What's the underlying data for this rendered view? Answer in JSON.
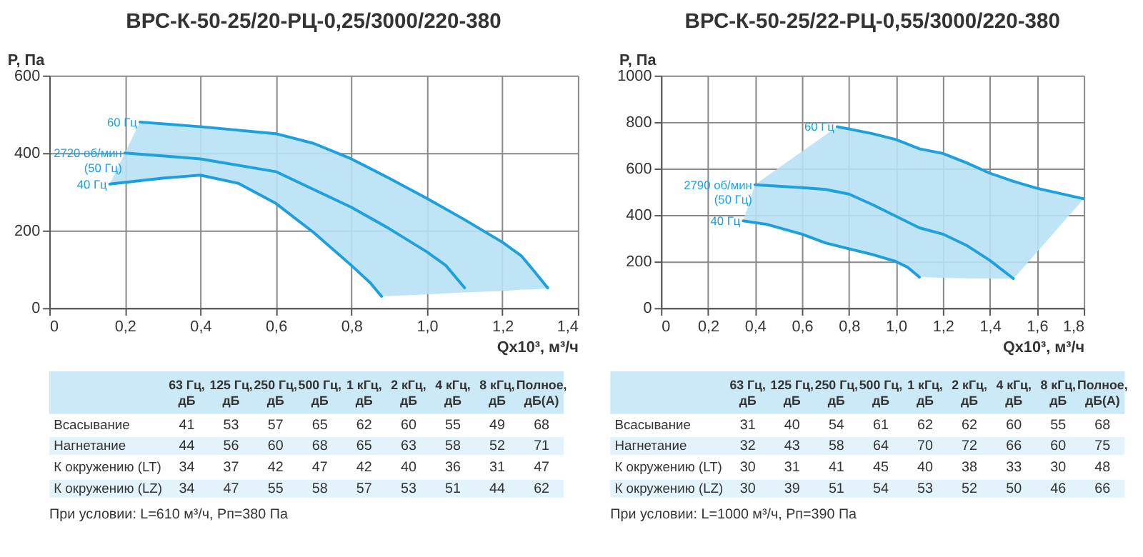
{
  "chart_data": [
    {
      "type": "line",
      "title": "ВРС-К-50-25/20-РЦ-0,25/3000/220-380",
      "xlabel": "Qx10³, м³/ч",
      "ylabel": "P, Па",
      "grid": true,
      "xlim": [
        0,
        1.4
      ],
      "xticks": [
        0,
        {
          "value": 0.2,
          "label": "0,2"
        },
        {
          "value": 0.4,
          "label": "0,4"
        },
        {
          "value": 0.6,
          "label": "0,6"
        },
        {
          "value": 0.8,
          "label": "0,8"
        },
        {
          "value": 1.0,
          "label": "1,0"
        },
        {
          "value": 1.2,
          "label": "1,2"
        },
        {
          "value": 1.4,
          "label": "1,4"
        }
      ],
      "ylim": [
        0,
        600
      ],
      "yticks": [
        0,
        200,
        400,
        600
      ],
      "series": [
        {
          "type": "area",
          "color": "#b7e1f5",
          "x": [
            0.16,
            0.24,
            0.3,
            0.4,
            0.5,
            0.6,
            0.7,
            0.8,
            0.85,
            0.88,
            0.9,
            1.0,
            1.1,
            1.2,
            1.25,
            1.28,
            1.32
          ],
          "values": [
            null,
            null,
            null,
            null,
            null,
            null,
            null,
            null,
            null,
            null,
            null,
            null,
            null,
            null,
            null,
            null,
            null
          ],
          "upper": [
            320,
            480,
            475,
            468,
            460,
            450,
            425,
            385,
            360,
            345,
            335,
            283,
            228,
            170,
            135,
            100,
            52
          ],
          "lower": [
            320,
            328,
            335,
            343,
            322,
            270,
            195,
            110,
            65,
            30,
            31,
            35,
            40,
            44,
            47,
            48,
            50
          ]
        },
        {
          "name": "60 Гц",
          "color": "#1ea0dc",
          "x": [
            0.24,
            0.4,
            0.6,
            0.7,
            0.8,
            0.9,
            1.0,
            1.1,
            1.2,
            1.25,
            1.28,
            1.32
          ],
          "values": [
            480,
            468,
            450,
            425,
            385,
            335,
            283,
            228,
            170,
            135,
            100,
            52
          ]
        },
        {
          "name": "2720 об/мин\n(50 Гц)",
          "color": "#1fa1dd",
          "x": [
            0.2,
            0.4,
            0.6,
            0.8,
            0.9,
            1.0,
            1.05,
            1.1
          ],
          "values": [
            400,
            385,
            352,
            260,
            205,
            145,
            110,
            52
          ]
        },
        {
          "name": "40 Гц",
          "color": "#1d9fdb",
          "x": [
            0.16,
            0.3,
            0.4,
            0.5,
            0.6,
            0.7,
            0.8,
            0.85,
            0.88
          ],
          "values": [
            320,
            335,
            343,
            322,
            270,
            195,
            110,
            65,
            30
          ]
        }
      ]
    },
    {
      "type": "line",
      "title": "ВРС-К-50-25/22-РЦ-0,55/3000/220-380",
      "xlabel": "Qx10³, м³/ч",
      "ylabel": "P, Па",
      "grid": true,
      "xlim": [
        0,
        1.8
      ],
      "xticks": [
        0,
        {
          "value": 0.2,
          "label": "0,2"
        },
        {
          "value": 0.4,
          "label": "0,4"
        },
        {
          "value": 0.6,
          "label": "0,6"
        },
        {
          "value": 0.8,
          "label": "0,8"
        },
        {
          "value": 1.0,
          "label": "1,0"
        },
        {
          "value": 1.2,
          "label": "1,2"
        },
        {
          "value": 1.4,
          "label": "1,4"
        },
        {
          "value": 1.6,
          "label": "1,6"
        },
        {
          "value": 1.8,
          "label": "1,8"
        }
      ],
      "ylim": [
        0,
        1000
      ],
      "yticks": [
        0,
        200,
        400,
        600,
        800,
        1000
      ],
      "series": [
        {
          "type": "area",
          "color": "#b7e1f5",
          "x": [
            0.35,
            0.4,
            0.45,
            0.6,
            0.7,
            0.75,
            0.8,
            0.9,
            1.0,
            1.05,
            1.1,
            1.2,
            1.3,
            1.4,
            1.5,
            1.6,
            1.8
          ],
          "values": [
            null,
            null,
            null,
            null,
            null,
            null,
            null,
            null,
            null,
            null,
            null,
            null,
            null,
            null,
            null,
            null,
            null
          ],
          "upper": [
            375,
            530,
            566,
            673,
            744,
            780,
            770,
            750,
            725,
            705,
            685,
            665,
            625,
            580,
            545,
            515,
            470
          ],
          "lower": [
            375,
            368,
            360,
            318,
            280,
            268,
            255,
            230,
            200,
            175,
            133,
            130,
            128,
            127,
            125,
            240,
            470
          ]
        },
        {
          "name": "60 Гц",
          "color": "#1ea0dc",
          "x": [
            0.75,
            0.9,
            1.0,
            1.1,
            1.2,
            1.3,
            1.4,
            1.5,
            1.6,
            1.8
          ],
          "values": [
            780,
            750,
            725,
            685,
            665,
            625,
            580,
            545,
            515,
            470
          ]
        },
        {
          "name": "2790 об/мин\n(50 Гц)",
          "color": "#1fa1dd",
          "x": [
            0.4,
            0.6,
            0.7,
            0.8,
            0.9,
            1.0,
            1.1,
            1.2,
            1.3,
            1.4,
            1.5
          ],
          "values": [
            530,
            518,
            510,
            490,
            445,
            395,
            345,
            318,
            270,
            205,
            127
          ]
        },
        {
          "name": "40 Гц",
          "color": "#1d9fdb",
          "x": [
            0.35,
            0.45,
            0.6,
            0.7,
            0.8,
            0.9,
            1.0,
            1.05,
            1.1
          ],
          "values": [
            375,
            360,
            318,
            280,
            255,
            230,
            200,
            175,
            133
          ]
        }
      ]
    },
    {
      "type": "heatmap",
      "categories": [
        "63 Гц,\nдБ",
        "125 Гц,\nдБ",
        "250 Гц,\nдБ",
        "500 Гц,\nдБ",
        "1 кГц,\nдБ",
        "2 кГц,\nдБ",
        "4 кГц,\nдБ",
        "8 кГц,\nдБ",
        "Полное,\nдБ(А)"
      ],
      "y_categories": [
        "Всасывание",
        "Нагнетание",
        "К окружению (LT)",
        "К окружению (LZ)"
      ],
      "data_labels": true,
      "cells": [
        [
          41,
          53,
          57,
          65,
          62,
          60,
          55,
          49,
          68
        ],
        [
          44,
          56,
          60,
          68,
          65,
          63,
          58,
          52,
          71
        ],
        [
          34,
          37,
          42,
          47,
          42,
          40,
          36,
          31,
          47
        ],
        [
          34,
          47,
          55,
          58,
          57,
          53,
          51,
          44,
          62
        ]
      ],
      "annotations": [
        "При условии: L=610 м³/ч, Рп=380 Па"
      ]
    },
    {
      "type": "heatmap",
      "categories": [
        "63 Гц,\nдБ",
        "125 Гц,\nдБ",
        "250 Гц,\nдБ",
        "500 Гц,\nдБ",
        "1 кГц,\nдБ",
        "2 кГц,\nдБ",
        "4 кГц,\nдБ",
        "8 кГц,\nдБ",
        "Полное,\nдБ(А)"
      ],
      "y_categories": [
        "Всасывание",
        "Нагнетание",
        "К окружению (LT)",
        "К окружению (LZ)"
      ],
      "data_labels": true,
      "cells": [
        [
          31,
          40,
          54,
          61,
          62,
          62,
          60,
          55,
          68
        ],
        [
          32,
          43,
          58,
          64,
          70,
          72,
          66,
          60,
          75
        ],
        [
          30,
          31,
          41,
          45,
          40,
          38,
          33,
          30,
          48
        ],
        [
          30,
          39,
          51,
          54,
          53,
          52,
          50,
          46,
          66
        ]
      ],
      "annotations": [
        "При условии: L=1000 м³/ч, Рп=390 Па"
      ]
    }
  ]
}
